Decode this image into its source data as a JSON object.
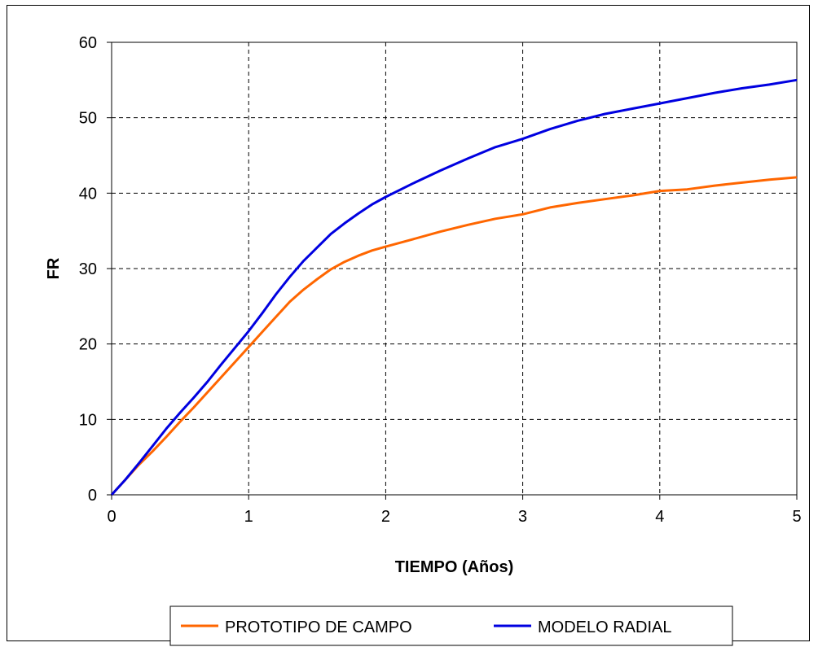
{
  "chart_data": {
    "type": "line",
    "title": "",
    "xlabel": "TIEMPO (Años)",
    "ylabel": "FR",
    "xlim": [
      0,
      5
    ],
    "ylim": [
      0,
      60
    ],
    "xticks": [
      "0",
      "1",
      "2",
      "3",
      "4",
      "5"
    ],
    "yticks": [
      "0",
      "10",
      "20",
      "30",
      "40",
      "50",
      "60"
    ],
    "grid": true,
    "legend_position": "bottom",
    "series": [
      {
        "name": "PROTOTIPO DE CAMPO",
        "color": "#FF6600",
        "x": [
          0,
          0.1,
          0.2,
          0.3,
          0.4,
          0.5,
          0.6,
          0.7,
          0.8,
          0.9,
          1.0,
          1.1,
          1.2,
          1.3,
          1.4,
          1.5,
          1.6,
          1.7,
          1.8,
          1.9,
          2.0,
          2.2,
          2.4,
          2.6,
          2.8,
          3.0,
          3.2,
          3.4,
          3.6,
          3.8,
          4.0,
          4.2,
          4.4,
          4.6,
          4.8,
          5.0
        ],
        "y": [
          0,
          2,
          4,
          5.8,
          7.7,
          9.7,
          11.6,
          13.6,
          15.6,
          17.6,
          19.6,
          21.6,
          23.6,
          25.6,
          27.2,
          28.6,
          29.9,
          30.9,
          31.7,
          32.4,
          32.9,
          33.9,
          34.9,
          35.8,
          36.6,
          37.2,
          38.1,
          38.7,
          39.2,
          39.7,
          40.3,
          40.5,
          41.0,
          41.4,
          41.8,
          42.1
        ]
      },
      {
        "name": "MODELO RADIAL",
        "color": "#0000E0",
        "x": [
          0,
          0.1,
          0.2,
          0.3,
          0.4,
          0.5,
          0.6,
          0.7,
          0.8,
          0.9,
          1.0,
          1.1,
          1.2,
          1.3,
          1.4,
          1.5,
          1.6,
          1.7,
          1.8,
          1.9,
          2.0,
          2.2,
          2.4,
          2.6,
          2.8,
          3.0,
          3.2,
          3.4,
          3.6,
          3.8,
          4.0,
          4.2,
          4.4,
          4.6,
          4.8,
          5.0
        ],
        "y": [
          0,
          2,
          4.2,
          6.5,
          8.8,
          10.9,
          12.9,
          15.0,
          17.3,
          19.5,
          21.7,
          24.1,
          26.6,
          28.9,
          31.0,
          32.8,
          34.6,
          36.0,
          37.3,
          38.5,
          39.5,
          41.3,
          43.0,
          44.6,
          46.1,
          47.2,
          48.5,
          49.6,
          50.5,
          51.2,
          51.9,
          52.6,
          53.3,
          53.9,
          54.4,
          55.0
        ]
      }
    ]
  }
}
